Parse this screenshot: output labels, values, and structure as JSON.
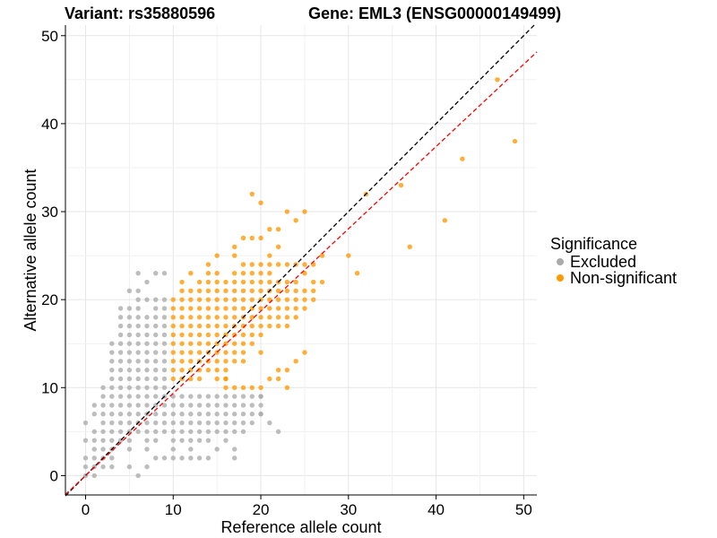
{
  "chart_data": {
    "type": "scatter",
    "title_left": "Variant: rs35880596",
    "title_right": "Gene: EML3 (ENSG00000149499)",
    "xlabel": "Reference allele count",
    "ylabel": "Alternative allele count",
    "xlim": [
      -2.3,
      51.5
    ],
    "ylim": [
      -2.2,
      51.2
    ],
    "xticks": [
      0,
      10,
      20,
      30,
      40,
      50
    ],
    "yticks": [
      0,
      10,
      20,
      30,
      40,
      50
    ],
    "grid": true,
    "legend": {
      "title": "Significance",
      "placement": "right",
      "entries": [
        {
          "label": "Excluded",
          "color": "#aaaaaa"
        },
        {
          "label": "Non-significant",
          "color": "#ff9900"
        }
      ]
    },
    "reference_lines": [
      {
        "style": "dashed",
        "color": "#000000",
        "slope": 1.0,
        "intercept": 0
      },
      {
        "style": "dashed",
        "color": "#ff0000",
        "slope": 0.935,
        "intercept": 0
      }
    ],
    "series": [
      {
        "name": "Excluded",
        "color": "#aaaaaa",
        "x": [
          0,
          0,
          0,
          0,
          0,
          1,
          1,
          1,
          1,
          1,
          1,
          1,
          1,
          2,
          2,
          2,
          2,
          2,
          2,
          2,
          2,
          2,
          2,
          3,
          3,
          3,
          3,
          3,
          3,
          3,
          3,
          3,
          3,
          3,
          3,
          3,
          3,
          3,
          4,
          4,
          4,
          4,
          4,
          4,
          4,
          4,
          4,
          4,
          4,
          4,
          4,
          4,
          4,
          4,
          5,
          5,
          5,
          5,
          5,
          5,
          5,
          5,
          5,
          5,
          5,
          5,
          5,
          5,
          5,
          5,
          5,
          5,
          5,
          6,
          6,
          6,
          6,
          6,
          6,
          6,
          6,
          6,
          6,
          6,
          6,
          6,
          6,
          6,
          6,
          6,
          6,
          6,
          7,
          7,
          7,
          7,
          7,
          7,
          7,
          7,
          7,
          7,
          7,
          7,
          7,
          7,
          7,
          7,
          7,
          7,
          7,
          8,
          8,
          8,
          8,
          8,
          8,
          8,
          8,
          8,
          8,
          8,
          8,
          8,
          8,
          8,
          8,
          8,
          8,
          8,
          9,
          9,
          9,
          9,
          9,
          9,
          9,
          9,
          9,
          9,
          9,
          9,
          9,
          9,
          9,
          9,
          9,
          9,
          10,
          10,
          10,
          10,
          10,
          10,
          10,
          10,
          11,
          11,
          11,
          11,
          11,
          11,
          11,
          12,
          12,
          12,
          12,
          12,
          12,
          12,
          12,
          13,
          13,
          13,
          13,
          13,
          13,
          13,
          14,
          14,
          14,
          14,
          14,
          14,
          14,
          15,
          15,
          15,
          15,
          15,
          15,
          16,
          16,
          16,
          16,
          16,
          16,
          17,
          17,
          17,
          17,
          17,
          17,
          18,
          18,
          18,
          18,
          18,
          19,
          19,
          19,
          19,
          20,
          20,
          20,
          21,
          22,
          17,
          20,
          20
        ],
        "y": [
          6,
          4,
          2,
          1,
          0,
          8,
          7,
          5,
          4,
          3,
          2,
          1,
          0,
          10,
          9,
          8,
          7,
          6,
          5,
          4,
          3,
          2,
          1,
          15,
          14,
          13,
          12,
          11,
          10,
          9,
          8,
          7,
          6,
          5,
          4,
          3,
          2,
          1,
          19,
          18,
          17,
          16,
          15,
          14,
          13,
          12,
          11,
          10,
          9,
          8,
          7,
          6,
          5,
          4,
          21,
          19,
          18,
          17,
          16,
          15,
          14,
          13,
          12,
          11,
          10,
          9,
          8,
          7,
          6,
          5,
          4,
          3,
          1,
          23,
          21,
          20,
          19,
          18,
          17,
          16,
          15,
          14,
          13,
          12,
          11,
          10,
          9,
          8,
          7,
          6,
          5,
          0,
          22,
          20,
          18,
          17,
          16,
          15,
          14,
          13,
          12,
          11,
          10,
          9,
          8,
          7,
          6,
          5,
          4,
          3,
          1,
          23,
          20,
          19,
          18,
          17,
          16,
          15,
          14,
          13,
          12,
          11,
          10,
          9,
          8,
          7,
          6,
          5,
          4,
          2,
          23,
          20,
          19,
          18,
          17,
          16,
          15,
          14,
          13,
          12,
          11,
          10,
          9,
          8,
          7,
          6,
          5,
          2,
          9,
          8,
          7,
          6,
          5,
          4,
          3,
          2,
          9,
          8,
          7,
          6,
          5,
          4,
          2,
          9,
          8,
          7,
          6,
          5,
          4,
          3,
          2,
          9,
          8,
          7,
          6,
          5,
          4,
          2,
          9,
          8,
          7,
          6,
          5,
          4,
          2,
          9,
          8,
          7,
          6,
          5,
          3,
          9,
          8,
          7,
          6,
          5,
          4,
          9,
          8,
          7,
          6,
          5,
          3,
          9,
          8,
          7,
          6,
          5,
          9,
          8,
          7,
          6,
          9,
          8,
          7,
          6,
          5,
          2,
          7,
          9
        ]
      },
      {
        "name": "Non-significant",
        "color": "#ff9900",
        "x": [
          10,
          10,
          10,
          10,
          10,
          10,
          10,
          10,
          10,
          10,
          11,
          11,
          11,
          11,
          11,
          11,
          11,
          11,
          11,
          11,
          11,
          11,
          12,
          12,
          12,
          12,
          12,
          12,
          12,
          12,
          12,
          12,
          12,
          12,
          13,
          13,
          13,
          13,
          13,
          13,
          13,
          13,
          13,
          13,
          13,
          13,
          14,
          14,
          14,
          14,
          14,
          14,
          14,
          14,
          14,
          14,
          14,
          14,
          14,
          15,
          15,
          15,
          15,
          15,
          15,
          15,
          15,
          15,
          15,
          15,
          15,
          15,
          15,
          16,
          16,
          16,
          16,
          16,
          16,
          16,
          16,
          16,
          16,
          16,
          16,
          16,
          17,
          17,
          17,
          17,
          17,
          17,
          17,
          17,
          17,
          17,
          17,
          17,
          17,
          18,
          18,
          18,
          18,
          18,
          18,
          18,
          18,
          18,
          18,
          18,
          18,
          18,
          19,
          19,
          19,
          19,
          19,
          19,
          19,
          19,
          19,
          19,
          19,
          19,
          20,
          20,
          20,
          20,
          20,
          20,
          20,
          20,
          20,
          20,
          20,
          20,
          21,
          21,
          21,
          21,
          21,
          21,
          21,
          21,
          21,
          21,
          22,
          22,
          22,
          22,
          22,
          22,
          22,
          22,
          22,
          23,
          23,
          23,
          23,
          23,
          23,
          23,
          23,
          24,
          24,
          24,
          24,
          24,
          24,
          24,
          25,
          25,
          25,
          25,
          25,
          25,
          26,
          26,
          26,
          26,
          27,
          27,
          16,
          17,
          18,
          19,
          20,
          21,
          22,
          23,
          24,
          25,
          30,
          31,
          32,
          36,
          37,
          41,
          43,
          47,
          49,
          22,
          23
        ],
        "y": [
          20,
          19,
          18,
          17,
          16,
          15,
          14,
          13,
          12,
          11,
          22,
          21,
          20,
          19,
          18,
          17,
          16,
          15,
          14,
          13,
          12,
          11,
          23,
          21,
          20,
          19,
          18,
          17,
          16,
          15,
          14,
          13,
          12,
          11,
          22,
          21,
          20,
          19,
          18,
          17,
          16,
          15,
          14,
          13,
          12,
          11,
          24,
          23,
          22,
          21,
          20,
          19,
          18,
          17,
          16,
          15,
          14,
          13,
          12,
          25,
          23,
          22,
          21,
          20,
          19,
          18,
          17,
          16,
          15,
          14,
          13,
          12,
          11,
          22,
          21,
          20,
          19,
          18,
          17,
          16,
          15,
          14,
          13,
          12,
          11,
          10,
          26,
          25,
          23,
          22,
          21,
          20,
          19,
          18,
          17,
          16,
          15,
          14,
          13,
          27,
          24,
          23,
          22,
          21,
          20,
          19,
          18,
          17,
          16,
          15,
          14,
          13,
          32,
          27,
          24,
          23,
          22,
          21,
          20,
          19,
          18,
          17,
          16,
          15,
          31,
          27,
          24,
          23,
          22,
          21,
          20,
          19,
          18,
          17,
          16,
          14,
          28,
          25,
          24,
          23,
          22,
          21,
          20,
          19,
          18,
          17,
          28,
          26,
          24,
          22,
          21,
          20,
          19,
          18,
          17,
          30,
          24,
          22,
          21,
          20,
          19,
          18,
          17,
          29,
          24,
          22,
          21,
          20,
          19,
          18,
          30,
          24,
          23,
          21,
          20,
          19,
          24,
          22,
          21,
          20,
          25,
          22,
          11,
          10,
          10,
          10,
          10,
          11,
          12,
          12,
          13,
          14,
          25,
          23,
          32,
          33,
          26,
          29,
          36,
          45,
          38,
          11,
          10
        ]
      }
    ]
  }
}
